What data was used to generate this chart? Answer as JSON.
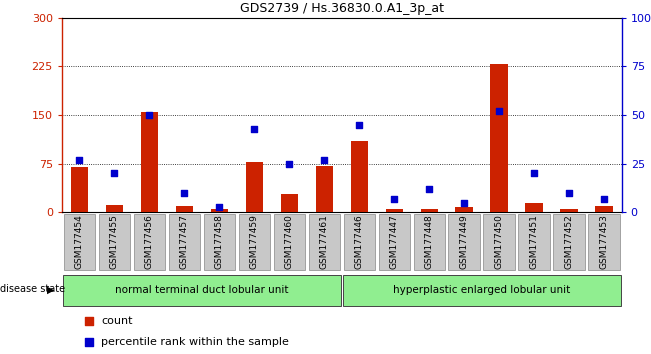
{
  "title": "GDS2739 / Hs.36830.0.A1_3p_at",
  "samples": [
    "GSM177454",
    "GSM177455",
    "GSM177456",
    "GSM177457",
    "GSM177458",
    "GSM177459",
    "GSM177460",
    "GSM177461",
    "GSM177446",
    "GSM177447",
    "GSM177448",
    "GSM177449",
    "GSM177450",
    "GSM177451",
    "GSM177452",
    "GSM177453"
  ],
  "counts": [
    70,
    12,
    155,
    10,
    5,
    78,
    28,
    72,
    110,
    5,
    5,
    8,
    228,
    15,
    5,
    10
  ],
  "percentiles": [
    27,
    20,
    50,
    10,
    3,
    43,
    25,
    27,
    45,
    7,
    12,
    5,
    52,
    20,
    10,
    7
  ],
  "groups": [
    {
      "label": "normal terminal duct lobular unit",
      "start": 0,
      "end": 8,
      "color": "#90EE90"
    },
    {
      "label": "hyperplastic enlarged lobular unit",
      "start": 8,
      "end": 16,
      "color": "#90EE90"
    }
  ],
  "bar_color": "#CC2200",
  "dot_color": "#0000CC",
  "ylim_left": [
    0,
    300
  ],
  "ylim_right": [
    0,
    100
  ],
  "yticks_left": [
    0,
    75,
    150,
    225,
    300
  ],
  "yticks_right": [
    0,
    25,
    50,
    75,
    100
  ],
  "ytick_labels_left": [
    "0",
    "75",
    "150",
    "225",
    "300"
  ],
  "ytick_labels_right": [
    "0",
    "25",
    "50",
    "75",
    "100%"
  ],
  "grid_values": [
    75,
    150,
    225
  ],
  "legend_count_label": "count",
  "legend_pct_label": "percentile rank within the sample",
  "disease_state_label": "disease state",
  "xtick_bg_color": "#c8c8c8",
  "plot_bg_color": "#ffffff",
  "bar_width": 0.5
}
